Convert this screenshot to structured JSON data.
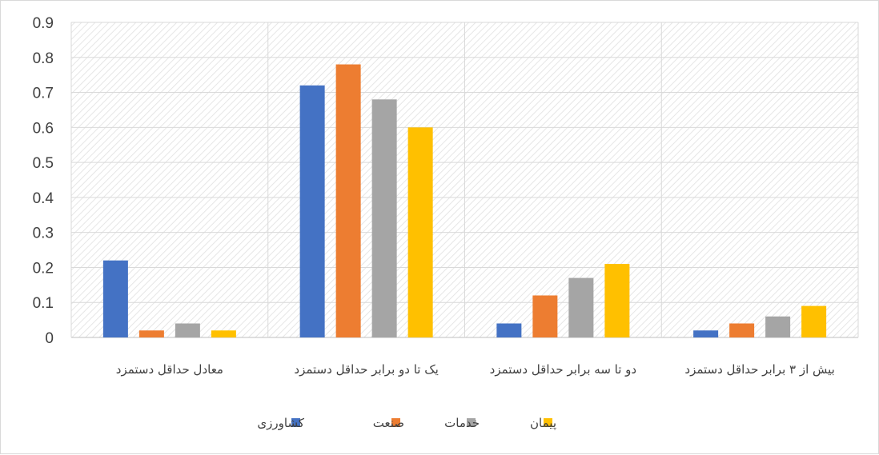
{
  "chart_data": {
    "type": "bar",
    "title": "",
    "xlabel": "",
    "ylabel": "",
    "ylim": [
      0,
      0.9
    ],
    "yticks": [
      0,
      0.1,
      0.2,
      0.3,
      0.4,
      0.5,
      0.6,
      0.7,
      0.8,
      0.9
    ],
    "grid": true,
    "legend_position": "bottom",
    "categories": [
      "معادل حداقل دستمزد",
      "یک تا دو برابر حداقل دستمزد",
      "دو تا سه برابر حداقل دستمزد",
      "بیش از ۳ برابر حداقل دستمزد"
    ],
    "series": [
      {
        "name": "کشاورزی",
        "color": "#4472c4",
        "values": [
          0.22,
          0.72,
          0.04,
          0.02
        ]
      },
      {
        "name": "صنعت",
        "color": "#ed7d31",
        "values": [
          0.02,
          0.78,
          0.12,
          0.04
        ]
      },
      {
        "name": "خدمات",
        "color": "#a5a5a5",
        "values": [
          0.04,
          0.68,
          0.17,
          0.06
        ]
      },
      {
        "name": "پیمان",
        "color": "#ffc000",
        "values": [
          0.02,
          0.6,
          0.21,
          0.09
        ]
      }
    ]
  }
}
